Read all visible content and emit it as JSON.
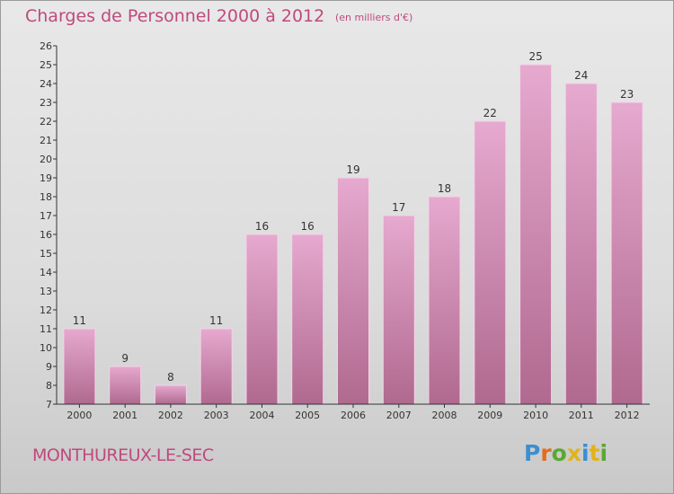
{
  "header": {
    "title": "Charges de Personnel 2000 à 2012",
    "subtitle": "(en milliers d'€)"
  },
  "footer": {
    "commune": "MONTHUREUX-LE-SEC",
    "logo_text": "Proxiti",
    "logo_colors": [
      "#3a8fd0",
      "#e36c1c",
      "#5aa832",
      "#e2b21a",
      "#3a8fd0",
      "#e2b21a",
      "#5aa832"
    ]
  },
  "colors": {
    "bar_light": "#e6a9cf",
    "bar_dark": "#b0698f",
    "bar_edge": "#f3d3e6",
    "axis": "#333333"
  },
  "chart_data": {
    "type": "bar",
    "title": "Charges de Personnel 2000 à 2012",
    "subtitle": "(en milliers d'€)",
    "categories": [
      "2000",
      "2001",
      "2002",
      "2003",
      "2004",
      "2005",
      "2006",
      "2007",
      "2008",
      "2009",
      "2010",
      "2011",
      "2012"
    ],
    "values": [
      11,
      9,
      8,
      11,
      16,
      16,
      19,
      17,
      18,
      22,
      25,
      24,
      23
    ],
    "ylim": [
      7,
      26
    ],
    "yticks": [
      7,
      8,
      9,
      10,
      11,
      12,
      13,
      14,
      15,
      16,
      17,
      18,
      19,
      20,
      21,
      22,
      23,
      24,
      25,
      26
    ],
    "grid": false,
    "data_labels": true
  }
}
